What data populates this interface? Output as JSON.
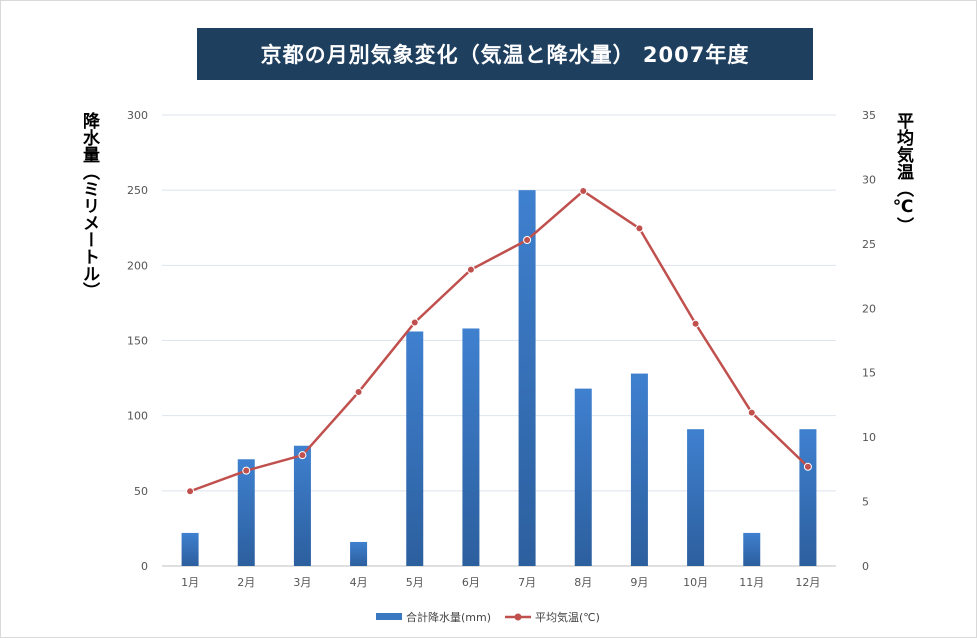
{
  "chart_data": {
    "type": "bar",
    "title": "京都の月別気象変化（気温と降水量） 2007年度",
    "categories": [
      "1月",
      "2月",
      "3月",
      "4月",
      "5月",
      "6月",
      "7月",
      "8月",
      "9月",
      "10月",
      "11月",
      "12月"
    ],
    "series": [
      {
        "name": "合計降水量(mm)",
        "type": "bar",
        "axis": "left",
        "color": "#3a78c2",
        "values": [
          22,
          71,
          80,
          16,
          156,
          158,
          250,
          118,
          128,
          91,
          22,
          91
        ]
      },
      {
        "name": "平均気温(℃)",
        "type": "line",
        "axis": "right",
        "color": "#c0504d",
        "values": [
          5.8,
          7.4,
          8.6,
          13.5,
          18.9,
          23.0,
          25.3,
          29.1,
          26.2,
          18.8,
          11.9,
          7.7
        ]
      }
    ],
    "ylabel_left": "降水量（ミリメートル）",
    "ylabel_right": "平均気温（℃）",
    "ylim_left": [
      0,
      300
    ],
    "ylim_right": [
      0,
      35
    ],
    "yticks_left": [
      "0",
      "50",
      "100",
      "150",
      "200",
      "250",
      "300"
    ],
    "yticks_right": [
      "0",
      "5",
      "10",
      "15",
      "20",
      "25",
      "30",
      "35"
    ],
    "grid": true,
    "legend_position": "bottom"
  }
}
